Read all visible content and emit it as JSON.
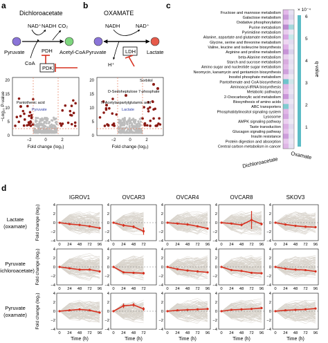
{
  "panel_labels": {
    "a": "a",
    "b": "b",
    "c": "c",
    "d": "d"
  },
  "panel_a": {
    "title": "Dichloroacetate",
    "nad": "NAD⁺",
    "nadh": "NADH",
    "co2": "CO₂",
    "pyruvate": "Pyruvate",
    "acetyl": "Acetyl-CoA",
    "coa": "CoA",
    "pdh": "PDH",
    "pdk": "PDK",
    "volcano_label": "Pantothenic acid",
    "volcano_label2": "Pyruvate",
    "xlabel": "Fold change (log₂)",
    "ylabel": "−Log₁₀ P-value",
    "xticks": [
      "−2",
      "0",
      "2"
    ],
    "yticks": [
      "0",
      "5",
      "10",
      "15",
      "20"
    ]
  },
  "panel_b": {
    "title": "OXAMATE",
    "nadh": "NADH",
    "nad": "NAD⁺",
    "h": "H⁺",
    "pyruvate": "Pyruvate",
    "lactate": "Lactate",
    "ldh": "LDH",
    "labels": [
      "Sorbitol",
      "D-Sedoheptulose 7-phosphate",
      "N-Acetylaspartylglutamic acid",
      "Lactate"
    ],
    "xlabel": "Fold change (log₂)",
    "xticks": [
      "−2",
      "0",
      "2"
    ],
    "yticks": [
      "0",
      "5",
      "10",
      "15",
      "20"
    ]
  },
  "panel_c": {
    "pathways": [
      "Fructose and mannose metabolism",
      "Galactose metabolism",
      "Oxidative phosphorylation",
      "Purine metabolism",
      "Pyrimidine metabolism",
      "Alanine, aspartate and glutamate metabolism",
      "Glycine, serine and threonine metabolism",
      "Valine, leucine and isoleucine biosynthesis",
      "Arginine and proline metabolism",
      "beta-Alanine metabolism",
      "Starch and sucrose metabolism",
      "Amino sugar and nucleotide sugar metabolism",
      "Neomycin, kanamycin and gentamicin biosynthesis",
      "Inositol phosphate metabolism",
      "Pantothenate and CoA biosynthesis",
      "Aminoacyl-tRNA biosynthesis",
      "Metabolic pathways",
      "2-Oxocarboxylic acid metabolism",
      "Biosynthesis of amino acids",
      "ABC transporters",
      "Phosphatidylinositol signaling system",
      "Lysosome",
      "AMPK signaling pathway",
      "Taste transduction",
      "Glucagon signaling pathway",
      "Insulin resistance",
      "Protein digestion and absorption",
      "Central carbon metabolism in cancer"
    ],
    "dca_colors": [
      "#e4b8ea",
      "#c99ad9",
      "#e8c6ee",
      "#bb8ad0",
      "#e9cdee",
      "#d7a7e3",
      "#efd7f2",
      "#e0b2e8",
      "#c793d6",
      "#ead0ef",
      "#d9acdf",
      "#e3bbe9",
      "#cfa0dc",
      "#edd3f1",
      "#6fc4cc",
      "#dfb4e6",
      "#e7c2ec",
      "#c995d8",
      "#ead1ef",
      "#7fcbd0",
      "#e1b7e7",
      "#d3a5df",
      "#ecd0f0",
      "#dbb0e3",
      "#e6c0eb",
      "#cc9cda",
      "#e8c8ed",
      "#dfb6e6"
    ],
    "oxa_colors": [
      "#e6e0f2",
      "#dcd4ee",
      "#e9e4f3",
      "#a4d8dc",
      "#ece8f4",
      "#c7e8ea",
      "#e2dbf0",
      "#e9e4f3",
      "#dad2ec",
      "#ebe6f4",
      "#e4def1",
      "#e9e4f3",
      "#e0d9ef",
      "#ece8f4",
      "#cfe5ea",
      "#e5dff1",
      "#e9e4f3",
      "#dfd8ef",
      "#ebe6f4",
      "#e2dbf0",
      "#e9e4f3",
      "#e5dff1",
      "#ece8f4",
      "#e0d9ef",
      "#e9e4f3",
      "#e3ddf1",
      "#ebe6f4",
      "#e6e0f2"
    ],
    "xlabels": [
      "Dichloroacetate",
      "Oxamate"
    ],
    "scale_exp": "× 10⁻⁴",
    "scale_ticks": [
      "6",
      "5",
      "4",
      "3",
      "2",
      "1"
    ],
    "scale_label": "q-value"
  },
  "panel_d": {
    "cell_lines": [
      "IGROV1",
      "OVCAR3",
      "OVCAR4",
      "OVCAR8",
      "SKOV3"
    ],
    "rows": [
      {
        "label1": "Lactate",
        "label2": "(oxamate)"
      },
      {
        "label1": "Pyruvate",
        "label2": "(dichloroacetate)"
      },
      {
        "label1": "Pyruvate",
        "label2": "(oxamate)"
      }
    ],
    "ylabel": "Fold change (log₂)",
    "xlabel": "Time (h)",
    "xticks": [
      "0",
      "24",
      "48",
      "72",
      "96"
    ],
    "yticks": [
      "4",
      "2",
      "0",
      "−2",
      "−4"
    ],
    "timepoints": [
      0,
      24,
      48,
      72,
      96
    ],
    "series": [
      [
        [
          [
            0,
            0
          ],
          [
            24,
            -0.3
          ],
          [
            48,
            -0.5
          ],
          [
            72,
            -0.8
          ],
          [
            96,
            -1.2
          ]
        ],
        [
          [
            0,
            0
          ],
          [
            24,
            -0.6
          ],
          [
            48,
            -0.9
          ],
          [
            72,
            -1.9
          ]
        ],
        [
          [
            0,
            0
          ],
          [
            24,
            -0.2
          ],
          [
            48,
            -0.4
          ],
          [
            72,
            -0.8
          ],
          [
            96,
            -1.3
          ]
        ],
        [
          [
            0,
            0
          ],
          [
            24,
            -0.2
          ],
          [
            48,
            -0.5
          ],
          [
            72,
            0.6
          ],
          [
            96,
            -0.3
          ]
        ],
        [
          [
            0,
            0
          ],
          [
            24,
            -0.4
          ],
          [
            48,
            -0.7
          ],
          [
            72,
            -0.9
          ],
          [
            96,
            -1.0
          ]
        ]
      ],
      [
        [
          [
            0,
            0
          ],
          [
            24,
            -0.3
          ],
          [
            48,
            -0.6
          ],
          [
            72,
            -0.6
          ],
          [
            96,
            -1.0
          ]
        ],
        [
          [
            0,
            0
          ],
          [
            24,
            -1.2
          ],
          [
            48,
            -1.3
          ],
          [
            72,
            -1.4
          ]
        ],
        [
          [
            0,
            0
          ],
          [
            24,
            -0.5
          ],
          [
            48,
            -0.8
          ],
          [
            72,
            -1.0
          ],
          [
            96,
            -1.2
          ]
        ],
        [
          [
            0,
            0
          ],
          [
            24,
            -0.7
          ],
          [
            48,
            -0.9
          ],
          [
            72,
            -1.3
          ],
          [
            96,
            -1.4
          ]
        ],
        [
          [
            0,
            0
          ],
          [
            24,
            -0.4
          ],
          [
            48,
            -0.6
          ],
          [
            72,
            -0.7
          ],
          [
            96,
            -1.0
          ]
        ]
      ],
      [
        [
          [
            0,
            0
          ],
          [
            24,
            0.2
          ],
          [
            48,
            0.4
          ],
          [
            72,
            0.2
          ],
          [
            96,
            -0.3
          ]
        ],
        [
          [
            0,
            0
          ],
          [
            24,
            1.2
          ],
          [
            48,
            1.4
          ],
          [
            72,
            0.5
          ]
        ],
        [
          [
            0,
            0
          ],
          [
            24,
            0.2
          ],
          [
            48,
            0.3
          ],
          [
            72,
            0.4
          ],
          [
            96,
            0.5
          ]
        ],
        [
          [
            0,
            0
          ],
          [
            24,
            0.3
          ],
          [
            48,
            0.4
          ],
          [
            72,
            0.5
          ],
          [
            96,
            0.7
          ]
        ],
        [
          [
            0,
            0
          ],
          [
            24,
            0.2
          ],
          [
            48,
            0.3
          ],
          [
            72,
            0.4
          ],
          [
            96,
            0.6
          ]
        ]
      ]
    ],
    "errors": [
      [
        [
          0,
          0.1,
          0.1,
          0.1,
          0.1
        ],
        [
          0,
          0.3,
          0.3,
          0.8
        ],
        [
          0,
          0.1,
          0.1,
          0.1,
          0.1
        ],
        [
          0,
          0.2,
          0.3,
          2.0,
          0.3
        ],
        [
          0,
          0.1,
          0.1,
          0.1,
          0.1
        ]
      ],
      [
        [
          0,
          0.1,
          0.1,
          0.1,
          0.1
        ],
        [
          0,
          0.2,
          0.2,
          0.3
        ],
        [
          0,
          0.1,
          0.1,
          0.2,
          0.2
        ],
        [
          0,
          0.1,
          0.1,
          0.2,
          0.1
        ],
        [
          0,
          0.1,
          0.1,
          0.1,
          0.1
        ]
      ],
      [
        [
          0,
          0.1,
          0.1,
          0.1,
          0.1
        ],
        [
          0,
          0.5,
          0.4,
          0.4
        ],
        [
          0,
          0.1,
          0.1,
          0.1,
          0.1
        ],
        [
          0,
          0.1,
          0.1,
          0.1,
          0.1
        ],
        [
          0,
          0.1,
          0.1,
          0.1,
          0.1
        ]
      ]
    ],
    "line_color": "#d7301f",
    "bg_color": "#d9d4cc"
  }
}
